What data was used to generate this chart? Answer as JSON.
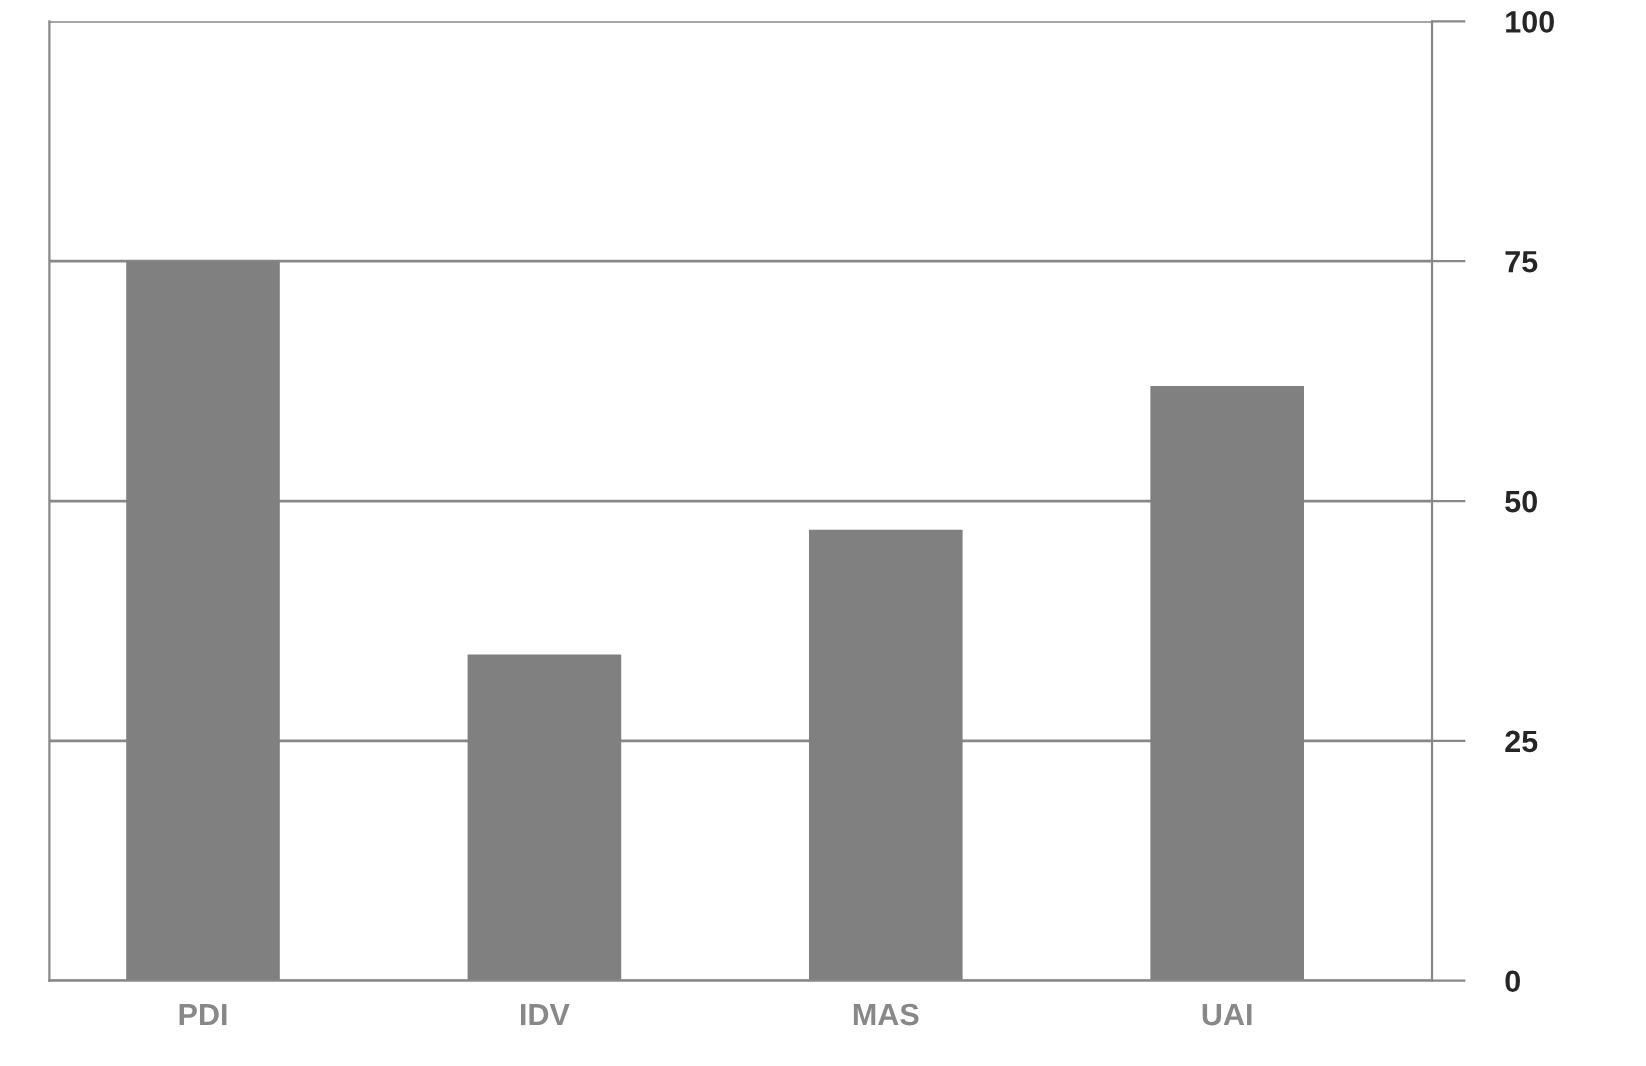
{
  "chart_data": {
    "type": "bar",
    "categories": [
      "PDI",
      "IDV",
      "MAS",
      "UAI"
    ],
    "values": [
      75,
      34,
      47,
      62
    ],
    "color": "#808080",
    "ylim": [
      0,
      100
    ],
    "yticks": [
      0,
      25,
      50,
      75,
      100
    ],
    "grid": "y"
  }
}
